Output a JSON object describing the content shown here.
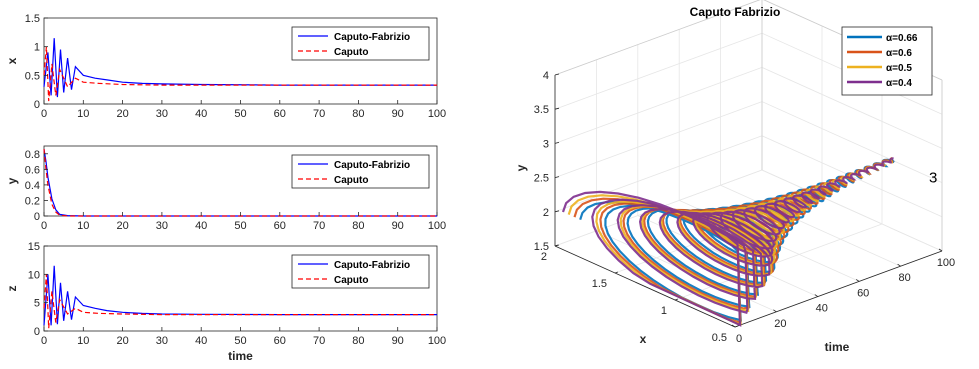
{
  "chart_data": [
    {
      "type": "line",
      "ylabel": "x",
      "xlim": [
        0,
        100
      ],
      "ylim": [
        0,
        1.5
      ],
      "xticks": [
        "0",
        "10",
        "20",
        "30",
        "40",
        "50",
        "60",
        "70",
        "80",
        "90",
        "100"
      ],
      "yticks": [
        "0",
        "0.5",
        "1",
        "1.5"
      ],
      "legend_position": "top-right",
      "series": [
        {
          "name": "Caputo-Fabrizio",
          "color": "#0000ff",
          "style": "solid",
          "x": [
            0,
            1,
            1.8,
            2.6,
            3.4,
            4.2,
            5,
            6,
            7,
            8,
            10,
            13,
            16,
            20,
            25,
            30,
            40,
            60,
            80,
            100
          ],
          "y": [
            0.3,
            0.9,
            0.15,
            1.15,
            0.12,
            0.95,
            0.2,
            0.8,
            0.25,
            0.65,
            0.5,
            0.45,
            0.42,
            0.38,
            0.36,
            0.35,
            0.34,
            0.33,
            0.33,
            0.33
          ]
        },
        {
          "name": "Caputo",
          "color": "#ff0000",
          "style": "dashed",
          "x": [
            0,
            0.6,
            1.2,
            2,
            3,
            4,
            6,
            8,
            10,
            14,
            20,
            30,
            40,
            60,
            80,
            100
          ],
          "y": [
            0.5,
            1.0,
            0.05,
            0.7,
            0.15,
            0.6,
            0.3,
            0.45,
            0.38,
            0.36,
            0.34,
            0.33,
            0.33,
            0.33,
            0.33,
            0.33
          ]
        }
      ]
    },
    {
      "type": "line",
      "ylabel": "y",
      "xlim": [
        0,
        100
      ],
      "ylim": [
        0,
        0.9
      ],
      "xticks": [
        "0",
        "10",
        "20",
        "30",
        "40",
        "50",
        "60",
        "70",
        "80",
        "90",
        "100"
      ],
      "yticks": [
        "0",
        "0.2",
        "0.4",
        "0.6",
        "0.8"
      ],
      "legend_position": "top-right",
      "series": [
        {
          "name": "Caputo-Fabrizio",
          "color": "#0000ff",
          "style": "solid",
          "x": [
            0,
            0.5,
            1,
            2,
            3,
            4,
            6,
            10,
            20,
            50,
            100
          ],
          "y": [
            0.86,
            0.7,
            0.5,
            0.22,
            0.08,
            0.02,
            0.005,
            0,
            0,
            0,
            0
          ]
        },
        {
          "name": "Caputo",
          "color": "#ff0000",
          "style": "dashed",
          "x": [
            0,
            0.5,
            1,
            2,
            3,
            4,
            6,
            10,
            20,
            50,
            100
          ],
          "y": [
            0.86,
            0.6,
            0.4,
            0.15,
            0.05,
            0.01,
            0,
            0,
            0,
            0,
            0
          ]
        }
      ]
    },
    {
      "type": "line",
      "ylabel": "z",
      "xlabel": "time",
      "xlim": [
        0,
        100
      ],
      "ylim": [
        0,
        15
      ],
      "xticks": [
        "0",
        "10",
        "20",
        "30",
        "40",
        "50",
        "60",
        "70",
        "80",
        "90",
        "100"
      ],
      "yticks": [
        "0",
        "5",
        "10",
        "15"
      ],
      "legend_position": "top-right",
      "series": [
        {
          "name": "Caputo-Fabrizio",
          "color": "#0000ff",
          "style": "solid",
          "x": [
            0,
            1,
            1.8,
            2.6,
            3.4,
            4.2,
            5,
            6,
            7,
            8,
            10,
            13,
            16,
            20,
            25,
            30,
            40,
            60,
            80,
            100
          ],
          "y": [
            1,
            10,
            1,
            11.5,
            1.2,
            8.5,
            1.8,
            7,
            2,
            6,
            4.5,
            4,
            3.6,
            3.3,
            3.1,
            3,
            2.95,
            2.9,
            2.9,
            2.9
          ]
        },
        {
          "name": "Caputo",
          "color": "#ff0000",
          "style": "dashed",
          "x": [
            0,
            0.6,
            1.2,
            2,
            3,
            4,
            6,
            8,
            10,
            14,
            20,
            30,
            40,
            60,
            80,
            100
          ],
          "y": [
            4,
            10,
            0.5,
            7,
            1.5,
            5.5,
            3,
            4,
            3.3,
            3.1,
            3,
            2.9,
            2.9,
            2.9,
            2.9,
            2.9
          ]
        }
      ]
    },
    {
      "type": "line3d",
      "title": "Caputo Fabrizio",
      "xlabel": "time",
      "ylabel": "x",
      "zlabel": "y",
      "time_range": [
        0,
        100
      ],
      "x_range": [
        0.5,
        2
      ],
      "y_range": [
        1.5,
        4
      ],
      "time_ticks": [
        "0",
        "20",
        "40",
        "60",
        "80",
        "100"
      ],
      "x_ticks": [
        "0.5",
        "1",
        "1.5",
        "2"
      ],
      "y_ticks": [
        "1.5",
        "2",
        "2.5",
        "3",
        "3.5",
        "4"
      ],
      "annotation": "3",
      "legend_position": "top-right",
      "equilibrium": {
        "time": 100,
        "x": 0.65,
        "y": 2.6
      },
      "series": [
        {
          "name": "α=0.66",
          "alpha": 0.66,
          "color": "#0072bd"
        },
        {
          "name": "α=0.6",
          "alpha": 0.6,
          "color": "#d95319"
        },
        {
          "name": "α=0.5",
          "alpha": 0.5,
          "color": "#edb120"
        },
        {
          "name": "α=0.4",
          "alpha": 0.4,
          "color": "#7e2f8e"
        }
      ]
    }
  ]
}
